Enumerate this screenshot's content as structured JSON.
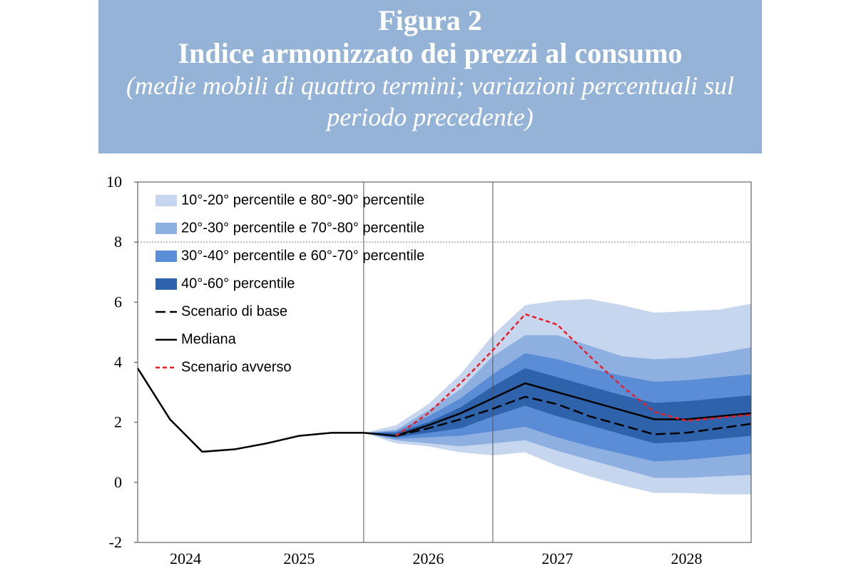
{
  "chart_data": {
    "type": "fan",
    "title": "Figura 2",
    "subtitle": "Indice armonizzato dei prezzi al consumo",
    "note": "(medie mobili di quattro termini; variazioni percentuali sul periodo precedente)",
    "x": [
      2024.25,
      2024.5,
      2024.75,
      2025,
      2025.25,
      2025.5,
      2025.75,
      2026,
      2026.25,
      2026.5,
      2026.75,
      2027,
      2027.25,
      2027.5,
      2027.75,
      2028,
      2028.25,
      2028.5,
      2028.75,
      2029
    ],
    "xlim": [
      2024.25,
      2029
    ],
    "xticks": [
      {
        "value": 2024.62,
        "label": "2024"
      },
      {
        "value": 2025.5,
        "label": "2025"
      },
      {
        "value": 2026.5,
        "label": "2026"
      },
      {
        "value": 2027.5,
        "label": "2027"
      },
      {
        "value": 2028.5,
        "label": "2028"
      }
    ],
    "vlines": [
      2026,
      2027
    ],
    "ylim": [
      -2,
      10
    ],
    "yticks": [
      -2,
      0,
      2,
      4,
      6,
      8,
      10
    ],
    "hlines": [
      8
    ],
    "series": [
      {
        "name": "10°-20° percentile e 80°-90° percentile",
        "color": "#c6d6ef",
        "low": [
          null,
          null,
          null,
          null,
          null,
          null,
          null,
          1.65,
          1.3,
          1.2,
          1.0,
          0.9,
          1.0,
          0.55,
          0.2,
          -0.1,
          -0.35,
          -0.35,
          -0.4,
          -0.4
        ],
        "high": [
          null,
          null,
          null,
          null,
          null,
          null,
          null,
          1.65,
          1.9,
          2.6,
          3.6,
          4.9,
          5.9,
          6.05,
          6.1,
          5.9,
          5.65,
          5.7,
          5.75,
          5.95
        ]
      },
      {
        "name": "20°-30° percentile e 70°-80° percentile",
        "color": "#8eb0e1",
        "low": [
          null,
          null,
          null,
          null,
          null,
          null,
          null,
          1.65,
          1.4,
          1.3,
          1.2,
          1.3,
          1.4,
          1.05,
          0.75,
          0.45,
          0.15,
          0.15,
          0.2,
          0.25
        ],
        "high": [
          null,
          null,
          null,
          null,
          null,
          null,
          null,
          1.65,
          1.75,
          2.4,
          3.1,
          4.2,
          4.9,
          4.9,
          4.55,
          4.2,
          4.1,
          4.15,
          4.3,
          4.5
        ]
      },
      {
        "name": "30°-40° percentile e 60°-70° percentile",
        "color": "#5a8dd6",
        "low": [
          null,
          null,
          null,
          null,
          null,
          null,
          null,
          1.65,
          1.45,
          1.5,
          1.55,
          1.7,
          1.85,
          1.5,
          1.2,
          0.95,
          0.7,
          0.75,
          0.85,
          0.95
        ],
        "high": [
          null,
          null,
          null,
          null,
          null,
          null,
          null,
          1.65,
          1.7,
          2.2,
          2.8,
          3.6,
          4.3,
          4.1,
          3.8,
          3.55,
          3.35,
          3.4,
          3.5,
          3.6
        ]
      },
      {
        "name": "40°-60° percentile",
        "color": "#2e62ab",
        "low": [
          null,
          null,
          null,
          null,
          null,
          null,
          null,
          1.65,
          1.5,
          1.65,
          1.8,
          2.2,
          2.55,
          2.2,
          1.9,
          1.6,
          1.3,
          1.35,
          1.45,
          1.55
        ],
        "high": [
          null,
          null,
          null,
          null,
          null,
          null,
          null,
          1.65,
          1.65,
          2.0,
          2.5,
          3.2,
          3.8,
          3.5,
          3.2,
          2.9,
          2.65,
          2.7,
          2.8,
          2.9
        ]
      },
      {
        "name": "Scenario di base",
        "color": "#000000",
        "dash": "dashed",
        "values": [
          null,
          null,
          null,
          null,
          null,
          null,
          null,
          null,
          1.55,
          1.8,
          2.1,
          2.45,
          2.85,
          2.6,
          2.2,
          1.9,
          1.6,
          1.65,
          1.8,
          1.95
        ]
      },
      {
        "name": "Mediana",
        "color": "#000000",
        "dash": "solid",
        "values": [
          3.8,
          2.1,
          1.02,
          1.1,
          1.3,
          1.55,
          1.65,
          1.65,
          1.55,
          1.9,
          2.3,
          2.8,
          3.3,
          3.0,
          2.7,
          2.4,
          2.1,
          2.1,
          2.2,
          2.3
        ]
      },
      {
        "name": "Scenario avverso",
        "color": "#ee1c24",
        "dash": "dotted",
        "values": [
          null,
          null,
          null,
          null,
          null,
          null,
          null,
          null,
          1.55,
          2.3,
          3.3,
          4.4,
          5.6,
          5.25,
          4.2,
          3.2,
          2.35,
          2.05,
          2.15,
          2.25
        ]
      }
    ]
  }
}
